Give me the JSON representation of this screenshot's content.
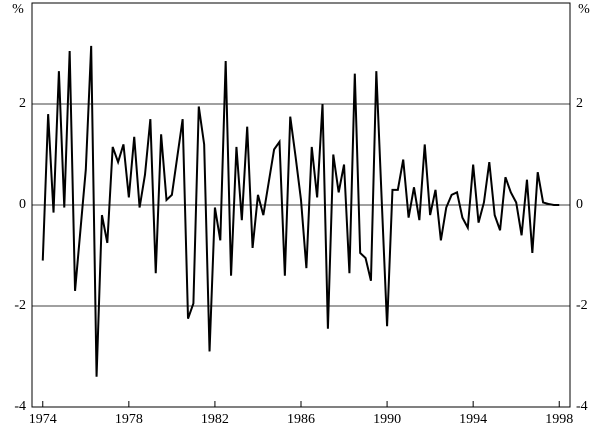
{
  "chart_data": {
    "type": "line",
    "y_label": "%",
    "x": [
      1974,
      1974.25,
      1974.5,
      1974.75,
      1975,
      1975.25,
      1975.5,
      1975.75,
      1976,
      1976.25,
      1976.5,
      1976.75,
      1977,
      1977.25,
      1977.5,
      1977.75,
      1978,
      1978.25,
      1978.5,
      1978.75,
      1979,
      1979.25,
      1979.5,
      1979.75,
      1980,
      1980.25,
      1980.5,
      1980.75,
      1981,
      1981.25,
      1981.5,
      1981.75,
      1982,
      1982.25,
      1982.5,
      1982.75,
      1983,
      1983.25,
      1983.5,
      1983.75,
      1984,
      1984.25,
      1984.5,
      1984.75,
      1985,
      1985.25,
      1985.5,
      1985.75,
      1986,
      1986.25,
      1986.5,
      1986.75,
      1987,
      1987.25,
      1987.5,
      1987.75,
      1988,
      1988.25,
      1988.5,
      1988.75,
      1989,
      1989.25,
      1989.5,
      1989.75,
      1990,
      1990.25,
      1990.5,
      1990.75,
      1991,
      1991.25,
      1991.5,
      1991.75,
      1992,
      1992.25,
      1992.5,
      1992.75,
      1993,
      1993.25,
      1993.5,
      1993.75,
      1994,
      1994.25,
      1994.5,
      1994.75,
      1995,
      1995.25,
      1995.5,
      1995.75,
      1996,
      1996.25,
      1996.5,
      1996.75,
      1997,
      1997.25,
      1997.5,
      1997.75,
      1998
    ],
    "series": [
      {
        "color": "#000000",
        "values": [
          -1.1,
          1.8,
          -0.15,
          2.65,
          -0.05,
          3.05,
          -1.7,
          -0.5,
          0.7,
          3.15,
          -3.4,
          -0.2,
          -0.75,
          1.15,
          0.85,
          1.2,
          0.15,
          1.35,
          -0.05,
          0.6,
          1.7,
          -1.35,
          1.4,
          0.1,
          0.2,
          0.95,
          1.7,
          -2.25,
          -1.95,
          1.95,
          1.2,
          -2.9,
          -0.05,
          -0.7,
          2.85,
          -1.4,
          1.15,
          -0.3,
          1.55,
          -0.85,
          0.2,
          -0.2,
          0.45,
          1.1,
          1.25,
          -1.4,
          1.75,
          0.95,
          0.1,
          -1.25,
          1.15,
          0.15,
          2.0,
          -2.45,
          1.0,
          0.25,
          0.8,
          -1.35,
          2.6,
          -0.95,
          -1.05,
          -1.5,
          2.65,
          0.1,
          -2.4,
          0.3,
          0.3,
          0.9,
          -0.25,
          0.35,
          -0.3,
          1.2,
          -0.2,
          0.3,
          -0.7,
          -0.05,
          0.2,
          0.25,
          -0.25,
          -0.45,
          0.8,
          -0.35,
          0.05,
          0.85,
          -0.2,
          -0.5,
          0.55,
          0.25,
          0.05,
          -0.6,
          0.5,
          -0.95,
          0.65,
          0.05,
          0.02,
          0.0,
          0.0
        ]
      }
    ],
    "xlim": [
      1973.5,
      1998.5
    ],
    "xticks": [
      1974,
      1978,
      1982,
      1986,
      1990,
      1994,
      1998
    ],
    "ylim": [
      -4,
      4
    ],
    "yticks": [
      -4,
      -2,
      0,
      2
    ],
    "grid": true
  }
}
